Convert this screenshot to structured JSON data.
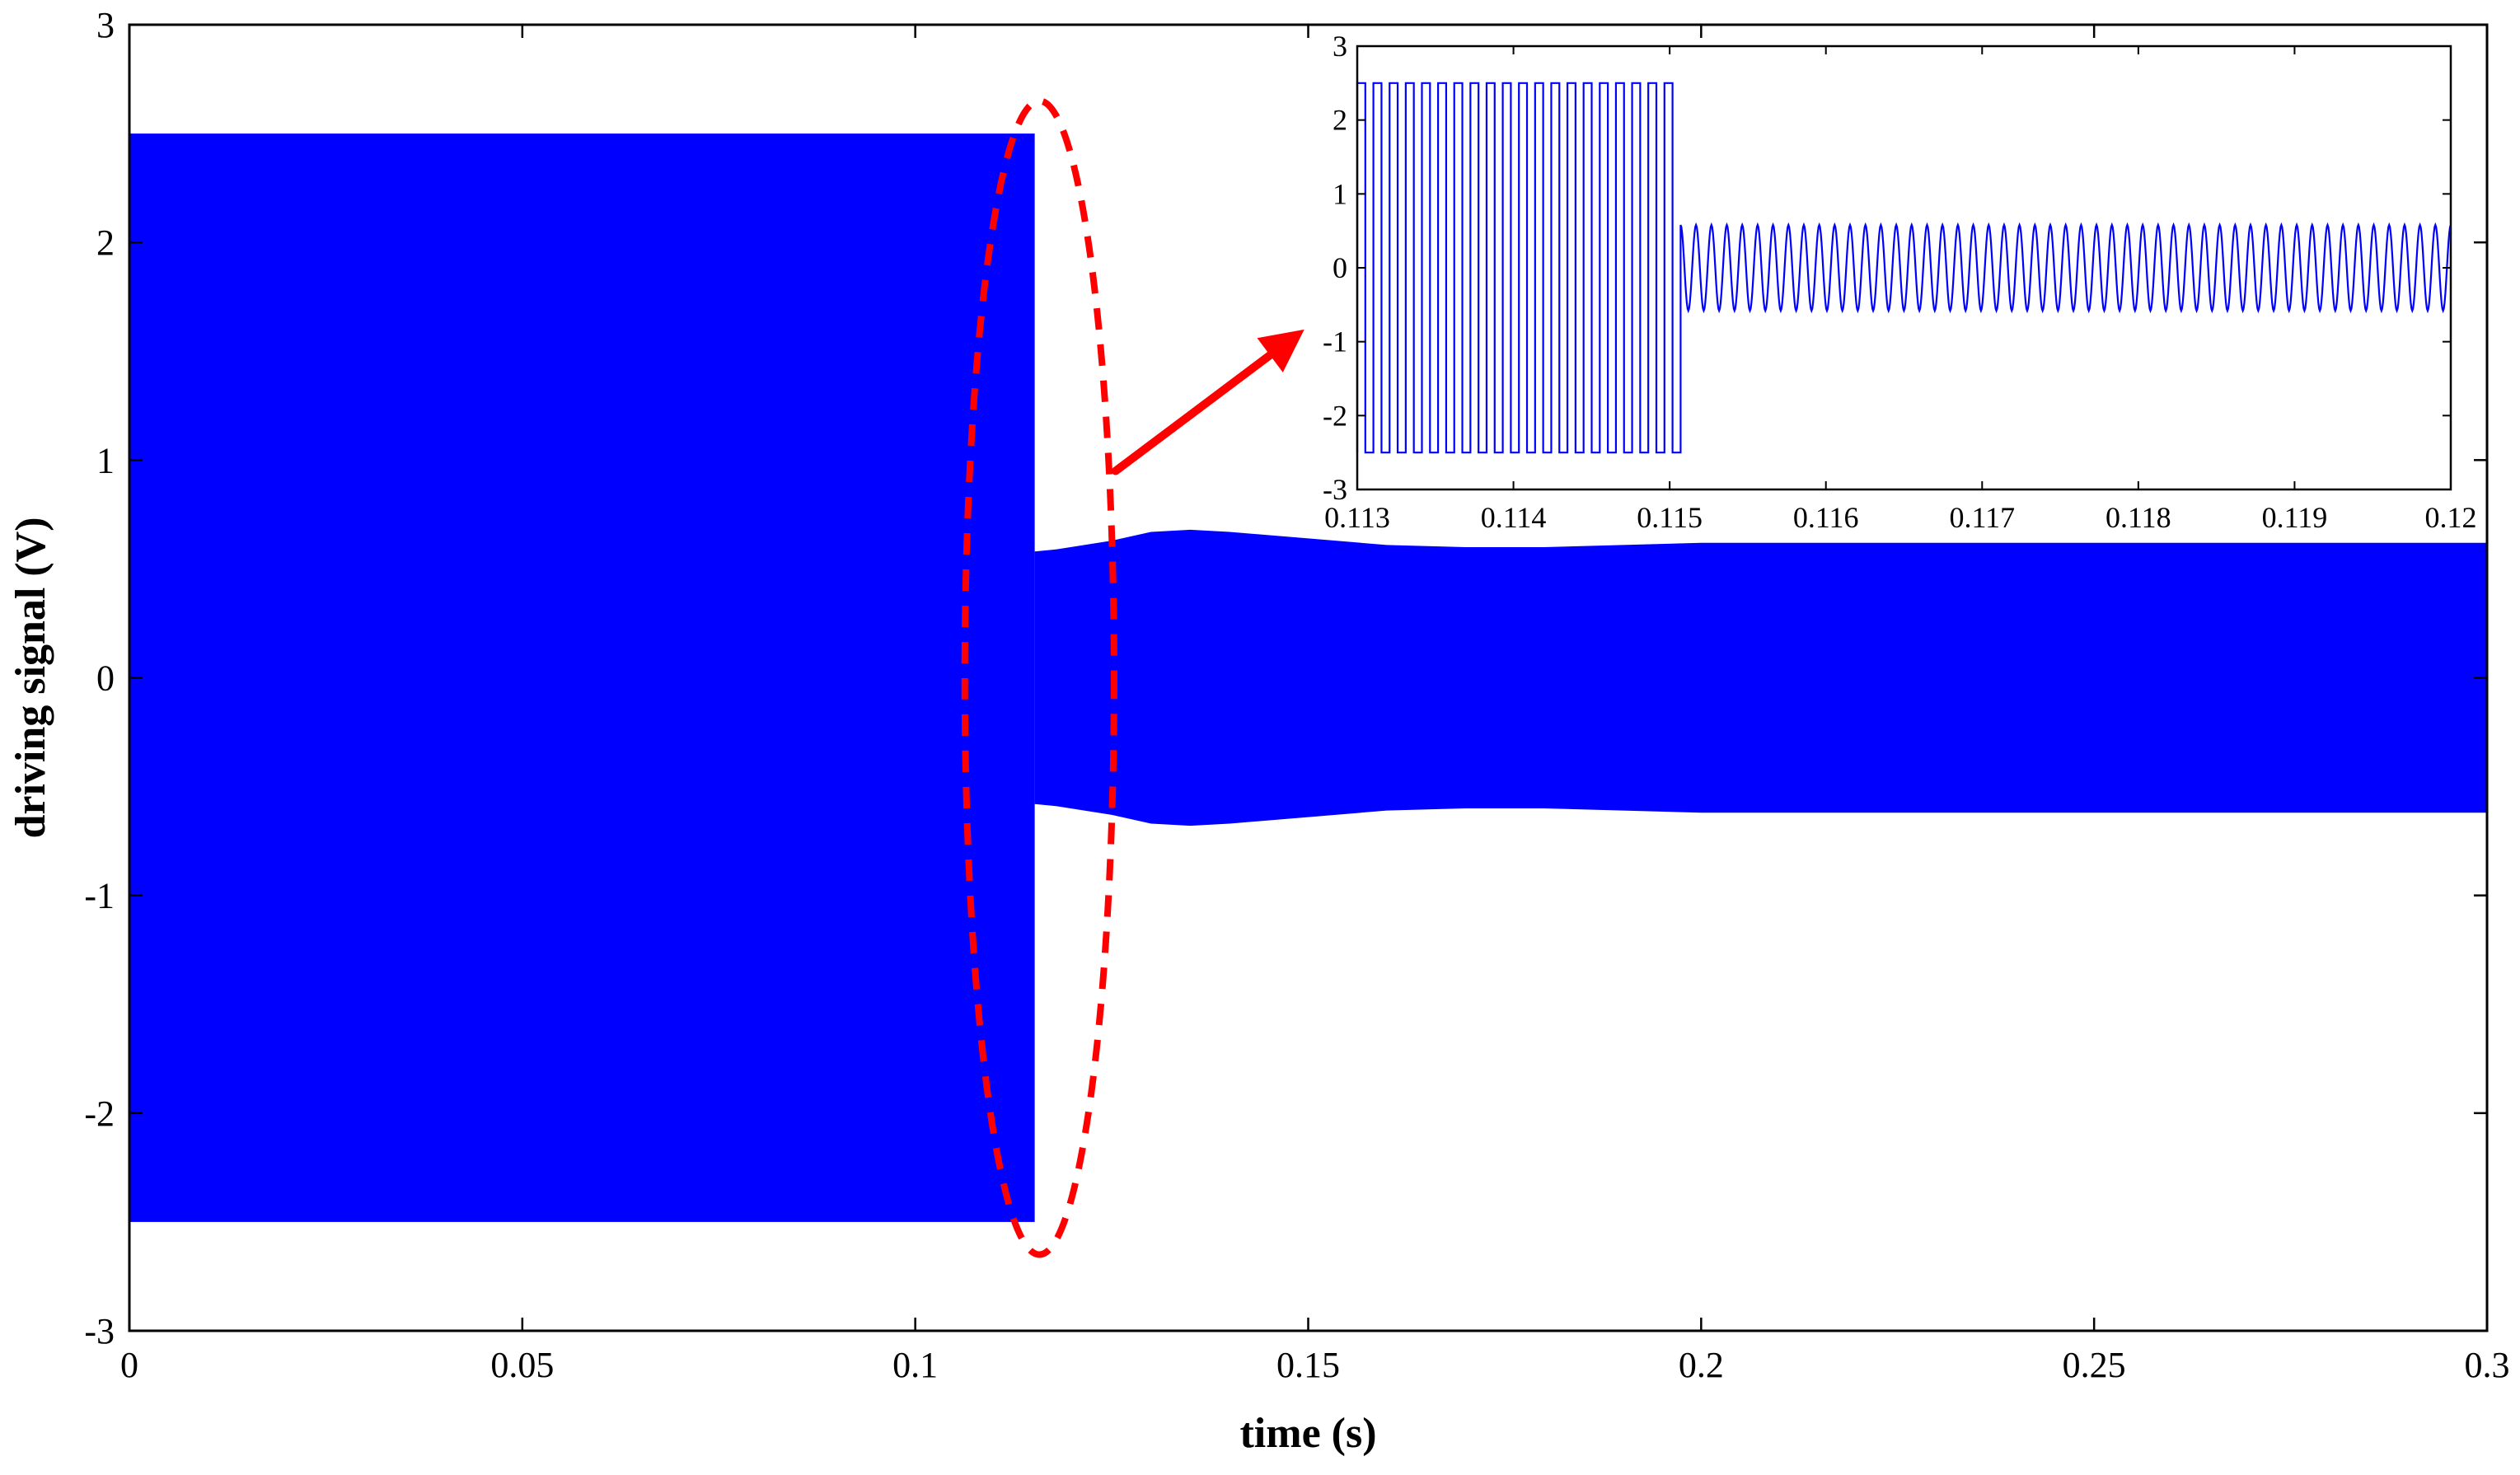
{
  "colors": {
    "signal": "#0000ff",
    "annotation": "#ff0000",
    "axis": "#000000",
    "background": "#ffffff"
  },
  "chart_data": [
    {
      "id": "main",
      "type": "line",
      "xlabel": "time (s)",
      "ylabel": "driving signal (V)",
      "xlim": [
        0,
        0.3
      ],
      "ylim": [
        -3,
        3
      ],
      "xticks": [
        0,
        0.05,
        0.1,
        0.15,
        0.2,
        0.25,
        0.3
      ],
      "xtick_labels": [
        "0",
        "0.05",
        "0.1",
        "0.15",
        "0.2",
        "0.25",
        "0.3"
      ],
      "yticks": [
        -3,
        -2,
        -1,
        0,
        1,
        2,
        3
      ],
      "ytick_labels": [
        "-3",
        "-2",
        "-1",
        "0",
        "1",
        "2",
        "3"
      ],
      "grid": false,
      "series": [
        {
          "style": "dense high-frequency oscillation, shown by its amplitude envelope",
          "color": "#0000ff",
          "switch_time": 0.1152,
          "envelope": [
            {
              "t": 0,
              "amp": 2.5
            },
            {
              "t": 0.1152,
              "amp": 2.5
            },
            {
              "t": 0.1152,
              "amp": 0.58
            },
            {
              "t": 0.118,
              "amp": 0.59
            },
            {
              "t": 0.125,
              "amp": 0.63
            },
            {
              "t": 0.13,
              "amp": 0.67
            },
            {
              "t": 0.135,
              "amp": 0.68
            },
            {
              "t": 0.14,
              "amp": 0.67
            },
            {
              "t": 0.15,
              "amp": 0.64
            },
            {
              "t": 0.16,
              "amp": 0.61
            },
            {
              "t": 0.17,
              "amp": 0.6
            },
            {
              "t": 0.18,
              "amp": 0.6
            },
            {
              "t": 0.19,
              "amp": 0.61
            },
            {
              "t": 0.2,
              "amp": 0.62
            },
            {
              "t": 0.22,
              "amp": 0.62
            },
            {
              "t": 0.25,
              "amp": 0.62
            },
            {
              "t": 0.3,
              "amp": 0.62
            }
          ]
        }
      ],
      "annotations": [
        {
          "type": "dashed-ellipse",
          "color": "#ff0000",
          "x_center": 0.1158,
          "y_center": 0,
          "x_halfwidth": 0.0095,
          "y_halfwidth": 2.65
        },
        {
          "type": "arrow",
          "color": "#ff0000",
          "from": [
            0.1255,
            0.95
          ],
          "to": [
            0.1495,
            1.6
          ]
        }
      ]
    },
    {
      "id": "inset",
      "type": "line",
      "xlabel": "",
      "ylabel": "",
      "xlim": [
        0.113,
        0.12
      ],
      "ylim": [
        -3,
        3
      ],
      "xticks": [
        0.113,
        0.114,
        0.115,
        0.116,
        0.117,
        0.118,
        0.119,
        0.12
      ],
      "xtick_labels": [
        "0.113",
        "0.114",
        "0.115",
        "0.116",
        "0.117",
        "0.118",
        "0.119",
        "0.12"
      ],
      "yticks": [
        -3,
        -2,
        -1,
        0,
        1,
        2,
        3
      ],
      "ytick_labels": [
        "-3",
        "-2",
        "-1",
        "0",
        "1",
        "2",
        "3"
      ],
      "grid": false,
      "series": [
        {
          "color": "#0000ff",
          "segments": [
            {
              "waveform": "square",
              "t_start": 0.113,
              "t_end": 0.11507,
              "amplitude": 2.5,
              "cycles": 20
            },
            {
              "waveform": "sine",
              "t_start": 0.11507,
              "t_end": 0.12,
              "amplitude": 0.58,
              "cycles": 50
            }
          ]
        }
      ]
    }
  ]
}
